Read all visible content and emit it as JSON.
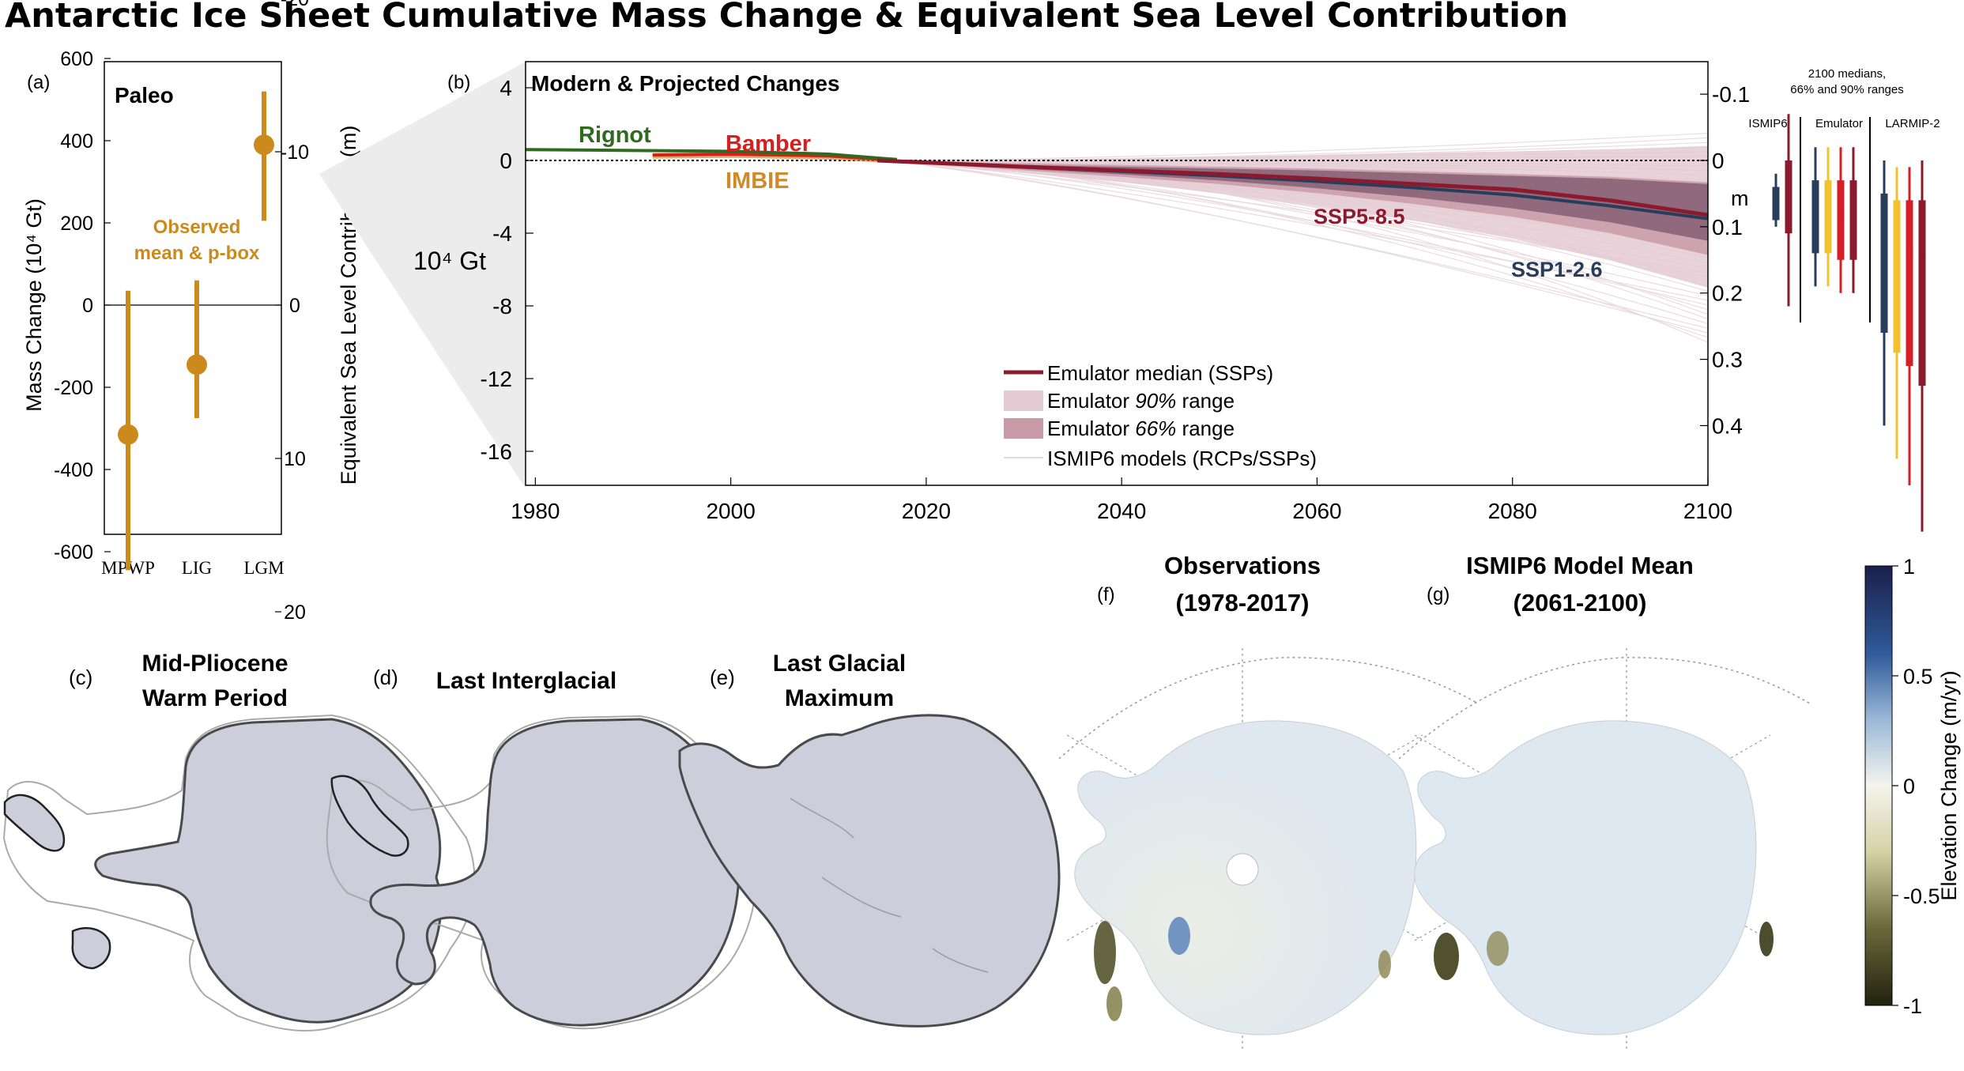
{
  "title": "Antarctic Ice Sheet Cumulative Mass Change & Equivalent Sea Level Contribution",
  "colors": {
    "paleo": "#CC8A1C",
    "rignot": "#2E6B1E",
    "bamber": "#D62020",
    "imbie": "#D08A2A",
    "ssp585": "#8B1A2E",
    "ssp126": "#283C5C",
    "range90": "#E4CBD3",
    "range66": "#C99AA8",
    "ismip": "#E8D8DE",
    "ice": "#CDCDDB",
    "yellow": "#F2C12E",
    "red": "#D41F26"
  },
  "panel_a": {
    "letter": "(a)",
    "title": "Paleo",
    "ylabel_left": "Mass Change (10⁴ Gt)",
    "ylabel_right": "Equivalent Sea Level Contribution (m)",
    "left_ticks": [
      "600",
      "400",
      "200",
      "0",
      "-200",
      "-400",
      "-600"
    ],
    "right_ticks": [
      "-20",
      "-10",
      "0",
      "10",
      "20"
    ],
    "annotation_1": "Observed",
    "annotation_2": "mean & p-box"
  },
  "panel_b": {
    "letter": "(b)",
    "title": "Modern & Projected Changes",
    "y_unit": "10⁴ Gt",
    "m_unit": "m",
    "y_ticks": [
      "4",
      "0",
      "-4",
      "-8",
      "-12",
      "-16"
    ],
    "x_ticks": [
      "1980",
      "2000",
      "2020",
      "2040",
      "2060",
      "2080",
      "2100"
    ],
    "right_ticks": [
      "-0.1",
      "0",
      "0.1",
      "0.2",
      "0.3",
      "0.4"
    ],
    "labels": {
      "rignot": "Rignot",
      "bamber": "Bamber",
      "imbie": "IMBIE",
      "ssp585": "SSP5-8.5",
      "ssp126": "SSP1-2.6"
    },
    "legend": [
      "Emulator median (SSPs)",
      "Emulator ",
      "90%",
      " range",
      "Emulator ",
      "66%",
      " range",
      "ISMIP6 models (RCPs/SSPs)"
    ]
  },
  "side_panel": {
    "header_1": "2100 medians,",
    "header_2": "66% and 90% ranges",
    "groups": [
      "ISMIP6",
      "Emulator",
      "LARMIP-2"
    ]
  },
  "panel_c": {
    "letter": "(c)",
    "title_1": "Mid-Pliocene",
    "title_2": "Warm Period"
  },
  "panel_d": {
    "letter": "(d)",
    "title": "Last Interglacial"
  },
  "panel_e": {
    "letter": "(e)",
    "title_1": "Last Glacial",
    "title_2": "Maximum"
  },
  "panel_f": {
    "letter": "(f)",
    "title_1": "Observations",
    "title_2": "(1978-2017)"
  },
  "panel_g": {
    "letter": "(g)",
    "title_1": "ISMIP6 Model Mean",
    "title_2": "(2061-2100)"
  },
  "colorbar": {
    "label": "Elevation Change (m/yr)",
    "ticks": [
      "1",
      "0.5",
      "0",
      "-0.5",
      "-1"
    ]
  },
  "chart_data": [
    {
      "type": "scatter",
      "title": "Paleo",
      "categories": [
        "MPWP",
        "LIG",
        "LGM"
      ],
      "ylabel": "Mass Change (10⁴ Gt)",
      "ylim": [
        -700,
        700
      ],
      "series": [
        {
          "name": "Observed mean & p-box",
          "values": [
            -315,
            -145,
            390
          ],
          "ranges": [
            [
              -645,
              35
            ],
            [
              -275,
              60
            ],
            [
              205,
              520
            ]
          ]
        }
      ]
    },
    {
      "type": "line",
      "title": "Modern & Projected Changes",
      "xlim": [
        1979,
        2100
      ],
      "ylim": [
        -18,
        5
      ],
      "ylabel": "10⁴ Gt",
      "series": [
        {
          "name": "Rignot",
          "x": [
            1979,
            1990,
            2000,
            2010,
            2017
          ],
          "values": [
            0.6,
            0.55,
            0.5,
            0.35,
            0.05
          ]
        },
        {
          "name": "Bamber",
          "x": [
            1992,
            2000,
            2010,
            2017
          ],
          "values": [
            0.3,
            0.35,
            0.25,
            0.0
          ]
        },
        {
          "name": "IMBIE",
          "x": [
            1992,
            2000,
            2010,
            2017
          ],
          "values": [
            0.25,
            0.3,
            0.2,
            0.0
          ]
        },
        {
          "name": "SSP5-8.5",
          "x": [
            2015,
            2030,
            2040,
            2050,
            2060,
            2070,
            2080,
            2090,
            2100
          ],
          "values": [
            0,
            -0.35,
            -0.55,
            -0.75,
            -1.0,
            -1.3,
            -1.6,
            -2.2,
            -3.0
          ]
        },
        {
          "name": "SSP1-2.6",
          "x": [
            2015,
            2030,
            2040,
            2050,
            2060,
            2070,
            2080,
            2090,
            2100
          ],
          "values": [
            0,
            -0.35,
            -0.6,
            -0.85,
            -1.15,
            -1.5,
            -1.9,
            -2.5,
            -3.2
          ]
        }
      ],
      "range90": {
        "x": [
          2015,
          2030,
          2040,
          2050,
          2060,
          2070,
          2080,
          2090,
          2100
        ],
        "lower": [
          0,
          -0.7,
          -1.2,
          -1.8,
          -2.5,
          -3.3,
          -4.3,
          -5.5,
          -7.0
        ],
        "upper": [
          0,
          0.0,
          0.1,
          0.2,
          0.3,
          0.4,
          0.5,
          0.6,
          0.8
        ]
      },
      "range66": {
        "x": [
          2015,
          2030,
          2040,
          2050,
          2060,
          2070,
          2080,
          2090,
          2100
        ],
        "lower": [
          0,
          -0.55,
          -0.9,
          -1.3,
          -1.8,
          -2.4,
          -3.1,
          -4.0,
          -5.2
        ],
        "upper": [
          0,
          -0.15,
          -0.25,
          -0.35,
          -0.45,
          -0.6,
          -0.75,
          -0.9,
          -1.2
        ]
      }
    },
    {
      "type": "bar",
      "title": "2100 medians, 66% and 90% ranges",
      "ylabel": "m",
      "ylim": [
        -0.15,
        0.55
      ],
      "groups": [
        "ISMIP6",
        "Emulator",
        "LARMIP-2"
      ],
      "series": [
        {
          "group": "ISMIP6",
          "color": "#283C5C",
          "median": 0.06,
          "r66": [
            0.04,
            0.09
          ],
          "r90": [
            0.02,
            0.1
          ]
        },
        {
          "group": "ISMIP6",
          "color": "#8B1A2E",
          "median": 0.04,
          "r66": [
            0.0,
            0.11
          ],
          "r90": [
            -0.07,
            0.22
          ]
        },
        {
          "group": "Emulator",
          "color": "#283C5C",
          "median": 0.08,
          "r66": [
            0.03,
            0.14
          ],
          "r90": [
            -0.02,
            0.19
          ]
        },
        {
          "group": "Emulator",
          "color": "#F2C12E",
          "median": 0.08,
          "r66": [
            0.03,
            0.14
          ],
          "r90": [
            -0.02,
            0.19
          ]
        },
        {
          "group": "Emulator",
          "color": "#D41F26",
          "median": 0.08,
          "r66": [
            0.03,
            0.15
          ],
          "r90": [
            -0.02,
            0.2
          ]
        },
        {
          "group": "Emulator",
          "color": "#8B1A2E",
          "median": 0.08,
          "r66": [
            0.03,
            0.15
          ],
          "r90": [
            -0.02,
            0.2
          ]
        },
        {
          "group": "LARMIP-2",
          "color": "#283C5C",
          "median": 0.12,
          "r66": [
            0.05,
            0.26
          ],
          "r90": [
            0.0,
            0.4
          ]
        },
        {
          "group": "LARMIP-2",
          "color": "#F2C12E",
          "median": 0.13,
          "r66": [
            0.06,
            0.29
          ],
          "r90": [
            0.01,
            0.45
          ]
        },
        {
          "group": "LARMIP-2",
          "color": "#D41F26",
          "median": 0.14,
          "r66": [
            0.06,
            0.31
          ],
          "r90": [
            0.01,
            0.49
          ]
        },
        {
          "group": "LARMIP-2",
          "color": "#8B1A2E",
          "median": 0.15,
          "r66": [
            0.06,
            0.34
          ],
          "r90": [
            0.0,
            0.56
          ]
        }
      ]
    }
  ]
}
